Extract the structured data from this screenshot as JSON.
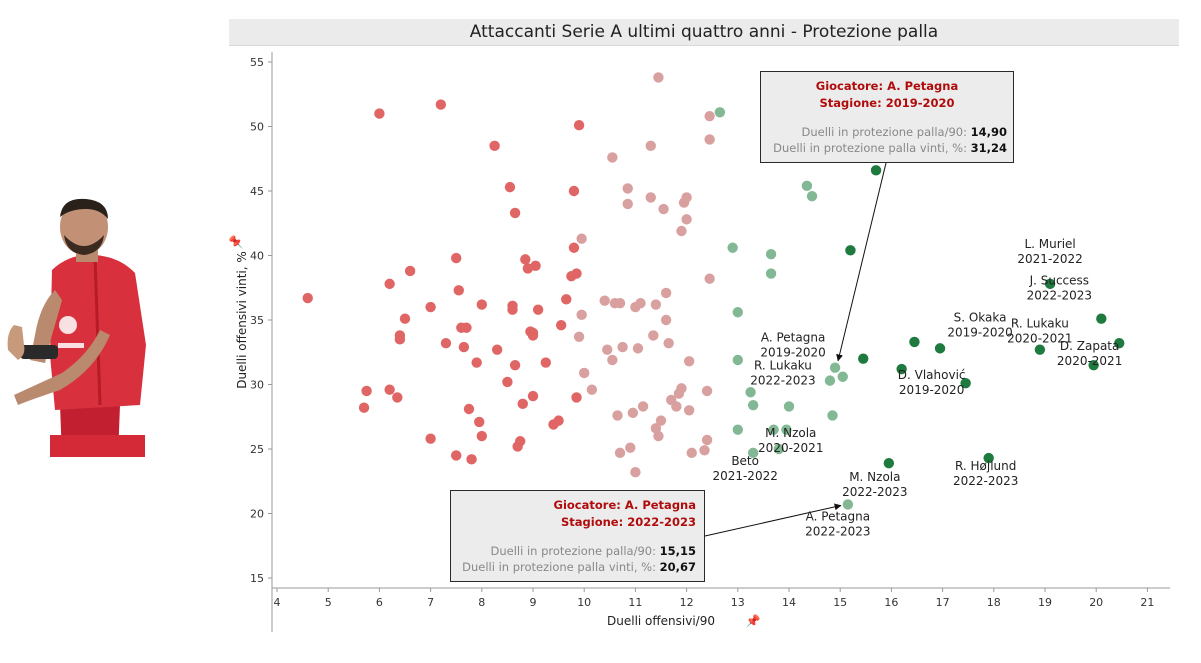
{
  "title": "Attaccanti Serie A ultimi quattro anni - Protezione palla",
  "colors": {
    "red": "#e06666",
    "pink": "#d9a0a0",
    "lightgreen": "#82b894",
    "darkgreen": "#1e7a3e",
    "axis": "#999999"
  },
  "chart_data": {
    "type": "scatter",
    "title": "Attaccanti Serie A ultimi quattro anni - Protezione palla",
    "xlabel": "Duelli offensivi/90",
    "ylabel": "Duelli offensivi vinti, %",
    "xlim": [
      3.5,
      21.5
    ],
    "ylim": [
      14,
      57
    ],
    "xticks": [
      4,
      5,
      6,
      7,
      8,
      9,
      10,
      11,
      12,
      13,
      14,
      15,
      16,
      17,
      18,
      19,
      20,
      21
    ],
    "yticks": [
      15,
      20,
      25,
      30,
      35,
      40,
      45,
      50,
      55
    ],
    "series": [
      {
        "name": "red",
        "color": "#e06666",
        "points": [
          [
            4.6,
            36.7
          ],
          [
            5.7,
            28.2
          ],
          [
            5.75,
            29.5
          ],
          [
            6.0,
            51.0
          ],
          [
            6.2,
            37.8
          ],
          [
            6.2,
            29.6
          ],
          [
            6.35,
            29.0
          ],
          [
            6.4,
            33.8
          ],
          [
            6.4,
            33.5
          ],
          [
            6.5,
            35.1
          ],
          [
            6.6,
            38.8
          ],
          [
            7.0,
            36.0
          ],
          [
            7.0,
            25.8
          ],
          [
            7.2,
            51.7
          ],
          [
            7.3,
            33.2
          ],
          [
            7.5,
            39.8
          ],
          [
            7.5,
            24.5
          ],
          [
            7.55,
            37.3
          ],
          [
            7.6,
            34.4
          ],
          [
            7.65,
            32.9
          ],
          [
            7.7,
            34.4
          ],
          [
            7.75,
            28.1
          ],
          [
            7.8,
            24.2
          ],
          [
            7.9,
            31.7
          ],
          [
            7.95,
            27.1
          ],
          [
            8.0,
            26.0
          ],
          [
            8.0,
            36.2
          ],
          [
            8.25,
            48.5
          ],
          [
            8.3,
            32.7
          ],
          [
            8.5,
            30.2
          ],
          [
            8.55,
            45.3
          ],
          [
            8.6,
            35.8
          ],
          [
            8.6,
            36.1
          ],
          [
            8.65,
            43.3
          ],
          [
            8.65,
            31.5
          ],
          [
            8.7,
            25.2
          ],
          [
            8.75,
            25.6
          ],
          [
            8.8,
            28.5
          ],
          [
            8.85,
            39.7
          ],
          [
            8.9,
            39.0
          ],
          [
            8.95,
            34.1
          ],
          [
            9.0,
            29.1
          ],
          [
            9.0,
            33.8
          ],
          [
            9.0,
            34.0
          ],
          [
            9.05,
            39.2
          ],
          [
            9.1,
            35.8
          ],
          [
            9.25,
            31.7
          ],
          [
            9.4,
            26.9
          ],
          [
            9.5,
            27.2
          ],
          [
            9.55,
            34.6
          ],
          [
            9.65,
            36.6
          ],
          [
            9.75,
            38.4
          ],
          [
            9.8,
            40.6
          ],
          [
            9.8,
            45.0
          ],
          [
            9.85,
            38.6
          ],
          [
            9.85,
            29.0
          ],
          [
            9.9,
            50.1
          ]
        ]
      },
      {
        "name": "pink",
        "color": "#d9a0a0",
        "points": [
          [
            9.9,
            33.7
          ],
          [
            9.95,
            35.4
          ],
          [
            9.95,
            41.3
          ],
          [
            10.0,
            30.9
          ],
          [
            10.15,
            29.6
          ],
          [
            10.4,
            36.5
          ],
          [
            10.45,
            32.7
          ],
          [
            10.55,
            47.6
          ],
          [
            10.55,
            31.9
          ],
          [
            10.6,
            36.3
          ],
          [
            10.65,
            27.6
          ],
          [
            10.7,
            36.3
          ],
          [
            10.7,
            24.7
          ],
          [
            10.75,
            32.9
          ],
          [
            10.85,
            44.0
          ],
          [
            10.85,
            45.2
          ],
          [
            10.9,
            25.1
          ],
          [
            10.95,
            27.8
          ],
          [
            11.0,
            23.2
          ],
          [
            11.0,
            36.0
          ],
          [
            11.05,
            32.8
          ],
          [
            11.1,
            36.3
          ],
          [
            11.15,
            28.3
          ],
          [
            11.3,
            44.5
          ],
          [
            11.3,
            48.5
          ],
          [
            11.35,
            33.8
          ],
          [
            11.4,
            36.2
          ],
          [
            11.4,
            26.6
          ],
          [
            11.45,
            26.0
          ],
          [
            11.45,
            53.8
          ],
          [
            11.5,
            27.2
          ],
          [
            11.55,
            43.6
          ],
          [
            11.6,
            35.0
          ],
          [
            11.6,
            37.1
          ],
          [
            11.65,
            33.2
          ],
          [
            11.7,
            28.8
          ],
          [
            11.8,
            28.3
          ],
          [
            11.85,
            29.3
          ],
          [
            11.9,
            29.7
          ],
          [
            11.9,
            41.9
          ],
          [
            11.95,
            44.1
          ],
          [
            12.0,
            44.5
          ],
          [
            12.0,
            42.8
          ],
          [
            12.05,
            28.0
          ],
          [
            12.05,
            31.8
          ],
          [
            12.1,
            24.7
          ],
          [
            12.35,
            24.9
          ],
          [
            12.4,
            25.7
          ],
          [
            12.4,
            29.5
          ],
          [
            12.45,
            49.0
          ],
          [
            12.45,
            50.8
          ],
          [
            12.45,
            38.2
          ]
        ]
      },
      {
        "name": "lightgreen",
        "color": "#82b894",
        "points": [
          [
            12.65,
            51.1
          ],
          [
            12.9,
            40.6
          ],
          [
            13.0,
            35.6
          ],
          [
            13.0,
            31.9
          ],
          [
            13.0,
            26.5
          ],
          [
            13.25,
            29.4
          ],
          [
            13.3,
            28.4
          ],
          [
            13.3,
            24.7
          ],
          [
            13.65,
            40.1
          ],
          [
            13.65,
            38.6
          ],
          [
            13.7,
            26.5
          ],
          [
            13.8,
            25.0
          ],
          [
            13.95,
            26.5
          ],
          [
            14.0,
            28.3
          ],
          [
            14.35,
            45.4
          ],
          [
            14.45,
            44.6
          ],
          [
            14.8,
            30.3
          ],
          [
            14.85,
            27.6
          ],
          [
            14.9,
            31.3
          ],
          [
            15.05,
            30.6
          ],
          [
            15.15,
            20.7
          ]
        ]
      },
      {
        "name": "darkgreen",
        "color": "#1e7a3e",
        "points": [
          [
            15.2,
            40.4
          ],
          [
            15.45,
            32.0
          ],
          [
            15.7,
            46.6
          ],
          [
            15.95,
            23.9
          ],
          [
            16.2,
            31.2
          ],
          [
            16.45,
            33.3
          ],
          [
            16.95,
            32.8
          ],
          [
            17.45,
            30.1
          ],
          [
            17.9,
            24.3
          ],
          [
            18.9,
            32.7
          ],
          [
            19.1,
            37.8
          ],
          [
            19.95,
            31.5
          ],
          [
            20.1,
            35.1
          ],
          [
            20.45,
            33.2
          ]
        ]
      }
    ],
    "labels": [
      {
        "text": [
          "A. Petagna",
          "2019-2020"
        ],
        "x": 14.9,
        "y": 31.3
      },
      {
        "text": [
          "R. Lukaku",
          "2022-2023"
        ],
        "x": 14.8,
        "y": 30.3
      },
      {
        "text": [
          "D. Vlahović",
          "2019-2020"
        ],
        "x": 16.2,
        "y": 31.2
      },
      {
        "text": [
          "S. Okaka",
          "2019-2020"
        ],
        "x": 16.95,
        "y": 32.8
      },
      {
        "text": [
          "L. Muriel",
          "2021-2022"
        ],
        "x": 19.1,
        "y": 37.8
      },
      {
        "text": [
          "J. Success",
          "2022-2023"
        ],
        "x": 20.1,
        "y": 35.1
      },
      {
        "text": [
          "R. Lukaku",
          "2020-2021"
        ],
        "x": 18.9,
        "y": 32.7
      },
      {
        "text": [
          "D. Zapata",
          "2020-2021"
        ],
        "x": 19.95,
        "y": 31.5
      },
      {
        "text": [
          "M. Nzola",
          "2020-2021"
        ],
        "x": 13.8,
        "y": 25.0
      },
      {
        "text": [
          "Beto",
          "2021-2022"
        ],
        "x": 13.3,
        "y": 24.7
      },
      {
        "text": [
          "M. Nzola",
          "2022-2023"
        ],
        "x": 15.95,
        "y": 23.9
      },
      {
        "text": [
          "R. Højlund",
          "2022-2023"
        ],
        "x": 17.9,
        "y": 24.3
      },
      {
        "text": [
          "A. Petagna",
          "2022-2023"
        ],
        "x": 15.15,
        "y": 20.7
      }
    ],
    "tooltips": [
      {
        "heading1": "Giocatore: A. Petagna",
        "heading2": "Stagione: 2019-2020",
        "row1_label": "Duelli in protezione palla/90:",
        "row1_value": "14,90",
        "row2_label": "Duelli in protezione palla vinti, %:",
        "row2_value": "31,24"
      },
      {
        "heading1": "Giocatore: A. Petagna",
        "heading2": "Stagione: 2022-2023",
        "row1_label": "Duelli in protezione palla/90:",
        "row1_value": "15,15",
        "row2_label": "Duelli in protezione palla vinti, %:",
        "row2_value": "20,67"
      }
    ]
  }
}
